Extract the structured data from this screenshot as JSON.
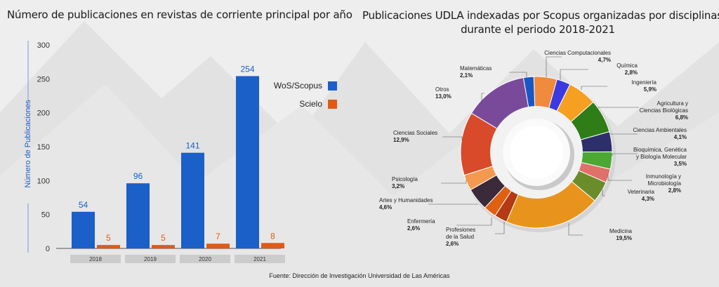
{
  "chart_data": [
    {
      "type": "bar",
      "title": "Número de publicaciones en revistas de corriente principal por año",
      "ylabel": "Número de Publicaciones",
      "categories": [
        "2018",
        "2019",
        "2020",
        "2021"
      ],
      "series": [
        {
          "name": "WoS/Scopus",
          "values": [
            54,
            96,
            141,
            254
          ],
          "color": "#1b5fc8"
        },
        {
          "name": "Scielo",
          "values": [
            5,
            5,
            7,
            8
          ],
          "color": "#e05a16"
        }
      ],
      "yticks": [
        0,
        50,
        100,
        150,
        200,
        250,
        300
      ],
      "ylim": [
        0,
        300
      ],
      "legend_position": "right"
    },
    {
      "type": "pie",
      "title_lines": [
        "Publicaciones UDLA indexadas por Scopus organizadas por disciplinas",
        "durante el periodo 2018-2021"
      ],
      "slices": [
        {
          "lines": [
            "Ciencias Computacionales"
          ],
          "pct": "4,7%",
          "value": 4.7,
          "color": "#f08a3c"
        },
        {
          "lines": [
            "Química"
          ],
          "pct": "2,8%",
          "value": 2.8,
          "color": "#3a3ae0"
        },
        {
          "lines": [
            "Ingeniería"
          ],
          "pct": "5,9%",
          "value": 5.9,
          "color": "#f5a020"
        },
        {
          "lines": [
            "Agricultura y",
            "Ciencias Biológicas"
          ],
          "pct": "6,8%",
          "value": 6.8,
          "color": "#2e7d16"
        },
        {
          "lines": [
            "Ciencias Ambientales"
          ],
          "pct": "4,1%",
          "value": 4.1,
          "color": "#2c2f6a"
        },
        {
          "lines": [
            "Bioquímica, Genética",
            "y Biología Molecular"
          ],
          "pct": "3,5%",
          "value": 3.5,
          "color": "#4aa833"
        },
        {
          "lines": [
            "Inmunología y",
            "Microbiología"
          ],
          "pct": "2,8%",
          "value": 2.8,
          "color": "#e0706a"
        },
        {
          "lines": [
            "Veterinaria"
          ],
          "pct": "4,3%",
          "value": 4.3,
          "color": "#6b8c2a"
        },
        {
          "lines": [
            "Medicina"
          ],
          "pct": "19,5%",
          "value": 19.5,
          "color": "#e8941c"
        },
        {
          "lines": [
            "Profesiones",
            "de la Salud"
          ],
          "pct": "2,6%",
          "value": 2.6,
          "color": "#b33a12"
        },
        {
          "lines": [
            "Enfermería"
          ],
          "pct": "2,6%",
          "value": 2.6,
          "color": "#e06012"
        },
        {
          "lines": [
            "Artes y Humanidades"
          ],
          "pct": "4,6%",
          "value": 4.6,
          "color": "#3a2a3a"
        },
        {
          "lines": [
            "Psicología"
          ],
          "pct": "3,2%",
          "value": 3.2,
          "color": "#f49a50"
        },
        {
          "lines": [
            "Ciencias Sociales"
          ],
          "pct": "12,9%",
          "value": 12.9,
          "color": "#d84a2a"
        },
        {
          "lines": [
            "Otros"
          ],
          "pct": "13,0%",
          "value": 13.0,
          "color": "#7a4a9a"
        },
        {
          "lines": [
            "Matemáticas"
          ],
          "pct": "2,1%",
          "value": 2.1,
          "color": "#1a56c4"
        }
      ]
    }
  ],
  "source": "Fuente: Dirección de Investigación Universidad de Las Américas",
  "colors": {
    "axis": "#7a9ad8",
    "year_box": "#cccccc"
  }
}
